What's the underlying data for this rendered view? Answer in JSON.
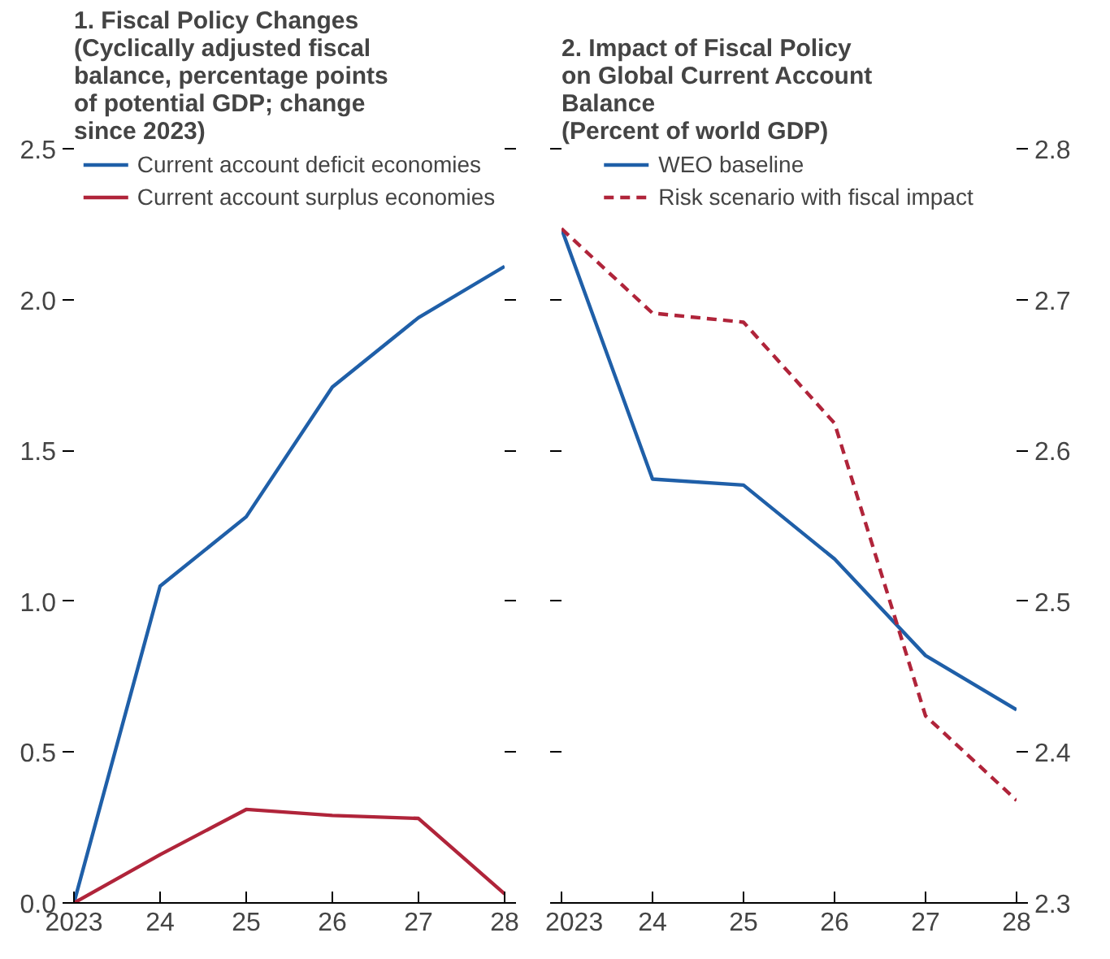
{
  "chart_data": [
    {
      "type": "line",
      "title": "1. Fiscal Policy Changes",
      "subtitle": "(Cyclically adjusted fiscal balance, percentage points of potential GDP; change since 2023)",
      "x": [
        2023,
        2024,
        2025,
        2026,
        2027,
        2028
      ],
      "xlim": [
        2023,
        2028
      ],
      "xticks": [
        {
          "value": 2023,
          "label": "2023"
        },
        {
          "value": 2024,
          "label": "24"
        },
        {
          "value": 2025,
          "label": "25"
        },
        {
          "value": 2026,
          "label": "26"
        },
        {
          "value": 2027,
          "label": "27"
        },
        {
          "value": 2028,
          "label": "28"
        }
      ],
      "ylim": [
        0,
        2.5
      ],
      "yticks": [
        {
          "value": 0,
          "label": "0.0"
        },
        0.5,
        {
          "value": 1,
          "label": "1.0"
        },
        1.5,
        {
          "value": 2,
          "label": "2.0"
        },
        2.5
      ],
      "series": [
        {
          "name": "Current account deficit economies",
          "color": "#1f5fa8",
          "values": [
            0,
            1.05,
            1.28,
            1.71,
            1.94,
            2.11
          ]
        },
        {
          "name": "Current account surplus economies",
          "color": "#b0243a",
          "values": [
            0,
            0.16,
            0.31,
            0.29,
            0.28,
            0.03
          ]
        }
      ],
      "legend": "top",
      "grid": false,
      "line_style": "solid"
    },
    {
      "type": "line",
      "title": "2. Impact of Fiscal Policy on Global Current Account Balance",
      "subtitle": "(Percent of world GDP)",
      "x": [
        2023,
        2024,
        2025,
        2026,
        2027,
        2028
      ],
      "xlim": [
        2023,
        2028
      ],
      "xticks": [
        {
          "value": 2023,
          "label": "2023"
        },
        {
          "value": 2024,
          "label": "24"
        },
        {
          "value": 2025,
          "label": "25"
        },
        {
          "value": 2026,
          "label": "26"
        },
        {
          "value": 2027,
          "label": "27"
        },
        {
          "value": 2028,
          "label": "28"
        }
      ],
      "y2lim": [
        2.3,
        2.8
      ],
      "y2ticks": [
        2.3,
        2.4,
        2.5,
        2.6,
        2.7,
        2.8
      ],
      "series": [
        {
          "name": "WEO baseline",
          "color": "#1f5fa8",
          "axis": "y2",
          "values": [
            2.747,
            2.581,
            2.577,
            2.528,
            2.464,
            2.428
          ]
        },
        {
          "name": "Risk scenario with fiscal impact",
          "color": "#b0243a",
          "axis": "y2",
          "line_style": "dashed",
          "values": [
            2.747,
            2.691,
            2.685,
            2.618,
            2.424,
            2.368
          ]
        }
      ],
      "legend": "top",
      "grid": false,
      "line_style": "solid"
    }
  ]
}
